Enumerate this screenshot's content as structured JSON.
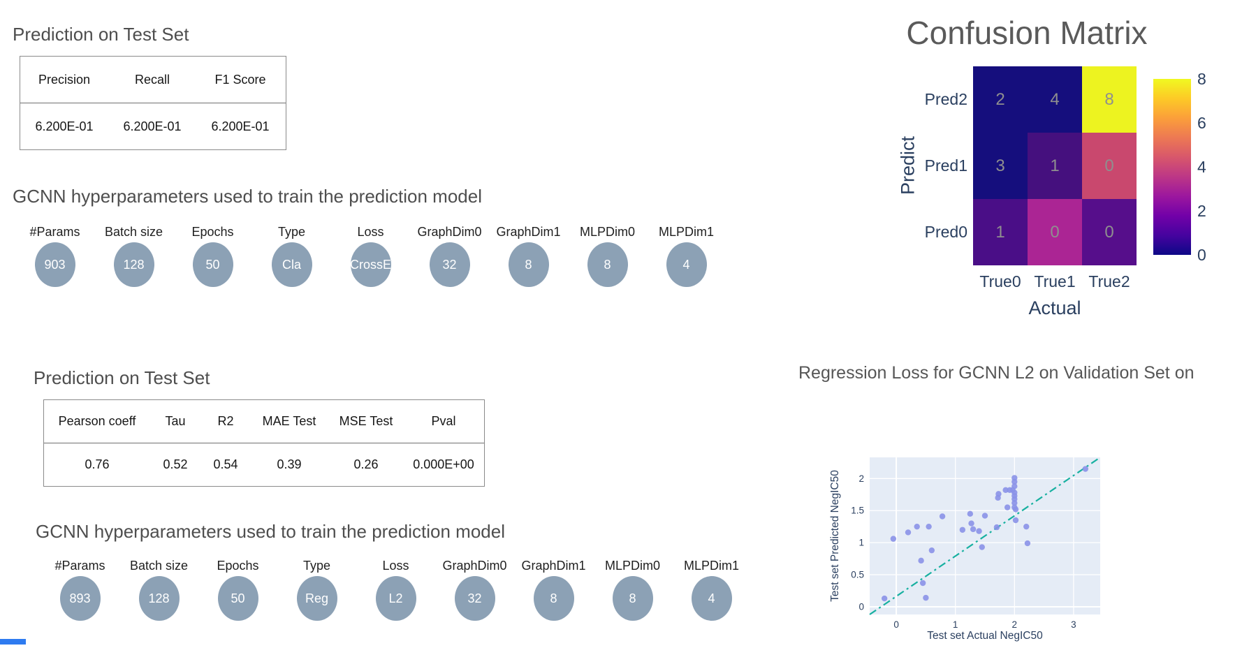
{
  "classification": {
    "section_title": "Prediction on Test Set",
    "table": {
      "headers": [
        "Precision",
        "Recall",
        "F1 Score"
      ],
      "values": [
        "6.200E-01",
        "6.200E-01",
        "6.200E-01"
      ]
    },
    "hyperparams_title": "GCNN hyperparameters used to train the prediction model",
    "hyperparams": [
      {
        "label": "#Params",
        "value": "903"
      },
      {
        "label": "Batch size",
        "value": "128"
      },
      {
        "label": "Epochs",
        "value": "50"
      },
      {
        "label": "Type",
        "value": "Cla"
      },
      {
        "label": "Loss",
        "value": "CrossE"
      },
      {
        "label": "GraphDim0",
        "value": "32"
      },
      {
        "label": "GraphDim1",
        "value": "8"
      },
      {
        "label": "MLPDim0",
        "value": "8"
      },
      {
        "label": "MLPDim1",
        "value": "4"
      }
    ]
  },
  "regression": {
    "section_title": "Prediction on Test Set",
    "table": {
      "headers": [
        "Pearson coeff",
        "Tau",
        "R2",
        "MAE Test",
        "MSE Test",
        "Pval"
      ],
      "values": [
        "0.76",
        "0.52",
        "0.54",
        "0.39",
        "0.26",
        "0.000E+00"
      ]
    },
    "hyperparams_title": "GCNN hyperparameters used to train the prediction model",
    "hyperparams": [
      {
        "label": "#Params",
        "value": "893"
      },
      {
        "label": "Batch size",
        "value": "128"
      },
      {
        "label": "Epochs",
        "value": "50"
      },
      {
        "label": "Type",
        "value": "Reg"
      },
      {
        "label": "Loss",
        "value": "L2"
      },
      {
        "label": "GraphDim0",
        "value": "32"
      },
      {
        "label": "GraphDim1",
        "value": "8"
      },
      {
        "label": "MLPDim0",
        "value": "8"
      },
      {
        "label": "MLPDim1",
        "value": "4"
      }
    ]
  },
  "colors": {
    "badge_fill": "#8ca1b5",
    "axis_font": "#2a3f5f",
    "plot_bg": "#e5ecf6",
    "marker": "#8a92e8",
    "identity_line": "#17b0a0",
    "bottom_strip": "#2e7bf0"
  },
  "chart_data": [
    {
      "type": "heatmap",
      "title": "Confusion Matrix",
      "xlabel": "Actual",
      "ylabel": "Predict",
      "columns": [
        "True0",
        "True1",
        "True2"
      ],
      "rows": [
        "Pred2",
        "Pred1",
        "Pred0"
      ],
      "values": [
        [
          2,
          4,
          8
        ],
        [
          3,
          1,
          0
        ],
        [
          1,
          0,
          0
        ]
      ],
      "cell_colors": [
        [
          "#150e7d",
          "#150e7d",
          "#edf320"
        ],
        [
          "#150e7d",
          "#45107e",
          "#c9486e"
        ],
        [
          "#4a0e87",
          "#ab2594",
          "#560e8b"
        ]
      ],
      "colorbar": {
        "min": 0,
        "max": 8,
        "ticks": [
          "8",
          "6",
          "4",
          "2",
          "0"
        ],
        "colormap": "plasma",
        "gradient": [
          "#0d0887",
          "#46039f",
          "#7201a8",
          "#9c179e",
          "#bd3786",
          "#d8576b",
          "#ed7953",
          "#fb9f3a",
          "#fdca26",
          "#f0f921"
        ]
      }
    },
    {
      "type": "scatter",
      "title": "Regression Loss for GCNN L2 on Validation Set on",
      "xlabel": "Test set Actual NegIC50",
      "ylabel": "Test set Predicted NegIC50",
      "xticks": [
        "0",
        "1",
        "2",
        "3"
      ],
      "xtick_vals": [
        0,
        1,
        2,
        3
      ],
      "yticks": [
        "0",
        "0.5",
        "1",
        "1.5",
        "2"
      ],
      "ytick_vals": [
        0,
        0.5,
        1,
        1.5,
        2
      ],
      "xlim": [
        -0.45,
        3.45
      ],
      "ylim": [
        -0.12,
        2.33
      ],
      "grid": true,
      "identity_line": {
        "style": "dashdot",
        "from": "bottom-left",
        "to": "top-right"
      },
      "points": [
        [
          -0.2,
          0.13
        ],
        [
          -0.05,
          1.06
        ],
        [
          0.2,
          1.16
        ],
        [
          0.35,
          1.25
        ],
        [
          0.42,
          0.72
        ],
        [
          0.45,
          0.37
        ],
        [
          0.5,
          0.14
        ],
        [
          0.55,
          1.25
        ],
        [
          0.6,
          0.88
        ],
        [
          0.78,
          1.41
        ],
        [
          1.12,
          1.2
        ],
        [
          1.25,
          1.45
        ],
        [
          1.27,
          1.3
        ],
        [
          1.3,
          1.21
        ],
        [
          1.4,
          1.18
        ],
        [
          1.45,
          0.93
        ],
        [
          1.5,
          1.42
        ],
        [
          1.7,
          1.24
        ],
        [
          1.72,
          1.7
        ],
        [
          1.73,
          1.76
        ],
        [
          1.85,
          1.82
        ],
        [
          1.88,
          1.55
        ],
        [
          1.92,
          1.82
        ],
        [
          1.97,
          1.82
        ],
        [
          2.0,
          2.01
        ],
        [
          2.0,
          1.95
        ],
        [
          2.0,
          1.88
        ],
        [
          2.0,
          1.78
        ],
        [
          2.0,
          1.73
        ],
        [
          2.0,
          1.68
        ],
        [
          2.0,
          1.62
        ],
        [
          2.0,
          1.55
        ],
        [
          2.02,
          1.52
        ],
        [
          2.02,
          1.35
        ],
        [
          2.2,
          1.25
        ],
        [
          2.22,
          0.99
        ],
        [
          3.2,
          2.15
        ]
      ]
    }
  ]
}
